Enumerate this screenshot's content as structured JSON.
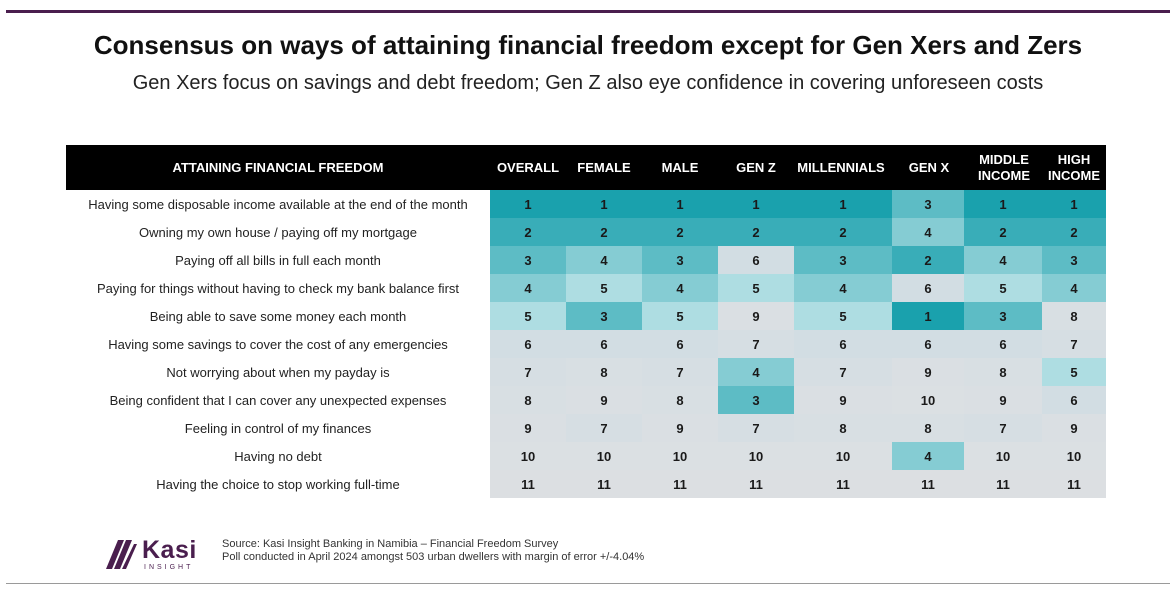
{
  "title": "Consensus on ways of attaining financial freedom except for Gen Xers and Zers",
  "subtitle": "Gen Xers focus on savings and debt freedom; Gen Z also eye confidence in covering unforeseen costs",
  "chart_data": {
    "type": "table",
    "row_header": "ATTAINING FINANCIAL FREEDOM",
    "columns": [
      "OVERALL",
      "FEMALE",
      "MALE",
      "GEN Z",
      "MILLENNIALS",
      "GEN X",
      "MIDDLE\nINCOME",
      "HIGH\nINCOME"
    ],
    "rows": [
      {
        "label": "Having some disposable income available at the end of the month",
        "values": [
          1,
          1,
          1,
          1,
          1,
          3,
          1,
          1
        ]
      },
      {
        "label": "Owning my own house / paying off my mortgage",
        "values": [
          2,
          2,
          2,
          2,
          2,
          4,
          2,
          2
        ]
      },
      {
        "label": "Paying off all bills in full each month",
        "values": [
          3,
          4,
          3,
          6,
          3,
          2,
          4,
          3
        ]
      },
      {
        "label": "Paying for things without having to check my bank balance first",
        "values": [
          4,
          5,
          4,
          5,
          4,
          6,
          5,
          4
        ]
      },
      {
        "label": "Being able to save some money each month",
        "values": [
          5,
          3,
          5,
          9,
          5,
          1,
          3,
          8
        ]
      },
      {
        "label": "Having some savings to cover the cost of any emergencies",
        "values": [
          6,
          6,
          6,
          7,
          6,
          6,
          6,
          7
        ]
      },
      {
        "label": "Not worrying about when my payday is",
        "values": [
          7,
          8,
          7,
          4,
          7,
          9,
          8,
          5
        ]
      },
      {
        "label": "Being confident that I can cover any unexpected expenses",
        "values": [
          8,
          9,
          8,
          3,
          9,
          10,
          9,
          6
        ]
      },
      {
        "label": "Feeling in control of my finances",
        "values": [
          9,
          7,
          9,
          7,
          8,
          8,
          7,
          9
        ]
      },
      {
        "label": "Having no debt",
        "values": [
          10,
          10,
          10,
          10,
          10,
          4,
          10,
          10
        ]
      },
      {
        "label": "Having the choice to stop working full-time",
        "values": [
          11,
          11,
          11,
          11,
          11,
          11,
          11,
          11
        ]
      }
    ],
    "rank_colors": {
      "1": "#1aa1ad",
      "2": "#39adb8",
      "3": "#5dbcc5",
      "4": "#85ccd3",
      "5": "#aedde2",
      "6": "#d2dde3",
      "7": "#d6dee3",
      "8": "#d8dfe3",
      "9": "#dadfe3",
      "10": "#dbe0e3",
      "11": "#dcdfe2"
    }
  },
  "logo": {
    "word": "Kasi",
    "sub": "INSIGHT",
    "color": "#4a1e4e"
  },
  "source": {
    "line1": "Source: Kasi Insight Banking in Namibia – Financial Freedom Survey",
    "line2": "Poll conducted  in April 2024 amongst 503 urban dwellers with margin of error +/-4.04%"
  }
}
